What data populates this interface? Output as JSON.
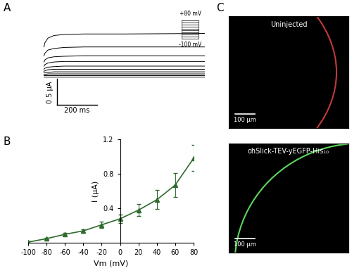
{
  "panel_labels": [
    "A",
    "B",
    "C"
  ],
  "chart_data": [
    {
      "type": "line",
      "tick_labels": false,
      "color": "#000000",
      "x": [
        0,
        5,
        20,
        50,
        100,
        200,
        400,
        800
      ],
      "series": [
        {
          "values": [
            -0.02,
            -0.02,
            -0.02,
            -0.02,
            -0.02,
            -0.02,
            -0.02,
            -0.02
          ]
        },
        {
          "values": [
            0.0,
            0.0,
            0.0,
            0.0,
            0.0,
            0.0,
            0.0,
            0.0
          ]
        },
        {
          "values": [
            0.02,
            0.02,
            0.03,
            0.03,
            0.03,
            0.03,
            0.03,
            0.03
          ]
        },
        {
          "values": [
            0.05,
            0.05,
            0.06,
            0.07,
            0.07,
            0.07,
            0.07,
            0.07
          ]
        },
        {
          "values": [
            0.08,
            0.09,
            0.11,
            0.12,
            0.12,
            0.12,
            0.12,
            0.12
          ]
        },
        {
          "values": [
            0.12,
            0.14,
            0.16,
            0.17,
            0.18,
            0.18,
            0.18,
            0.18
          ]
        },
        {
          "values": [
            0.18,
            0.21,
            0.24,
            0.26,
            0.27,
            0.27,
            0.27,
            0.27
          ]
        },
        {
          "values": [
            0.26,
            0.3,
            0.34,
            0.36,
            0.37,
            0.38,
            0.38,
            0.38
          ]
        },
        {
          "values": [
            0.38,
            0.43,
            0.49,
            0.52,
            0.54,
            0.55,
            0.55,
            0.55
          ]
        },
        {
          "values": [
            0.55,
            0.63,
            0.72,
            0.77,
            0.79,
            0.8,
            0.8,
            0.81
          ]
        }
      ],
      "scale_bars": {
        "x": {
          "value": 200,
          "label": "200 ms"
        },
        "y": {
          "value": 0.5,
          "label": "0.5 μA"
        }
      },
      "protocol": {
        "top": {
          "value": 80,
          "label": "+80 mV"
        },
        "bottom": {
          "value": -100,
          "label": "-100 mV"
        },
        "step": 20
      }
    },
    {
      "type": "line",
      "color": "#2e6b2e",
      "marker": "^",
      "xlabel": "Vm (mV)",
      "ylabel": "I (μA)",
      "x": [
        -100,
        -80,
        -60,
        -40,
        -20,
        0,
        20,
        40,
        60,
        80
      ],
      "values": [
        0.01,
        0.05,
        0.1,
        0.14,
        0.21,
        0.28,
        0.38,
        0.5,
        0.67,
        0.98
      ],
      "errors": [
        0.01,
        0.01,
        0.015,
        0.02,
        0.04,
        0.05,
        0.07,
        0.11,
        0.14,
        0.15
      ],
      "xlim": [
        -100,
        80
      ],
      "xticks": [
        -100,
        -80,
        -60,
        -40,
        -20,
        0,
        20,
        40,
        60,
        80
      ],
      "ylim": [
        0,
        1.2
      ],
      "yticks": [
        0.4,
        0.8,
        1.2
      ]
    }
  ],
  "images": [
    {
      "title": "Uninjected",
      "color": "#c03a3a"
    },
    {
      "title": "ohSlick-TEV-yEGFP-His₁₀",
      "color": "#5cd65c"
    }
  ],
  "image_scale_bar": "100 μm"
}
